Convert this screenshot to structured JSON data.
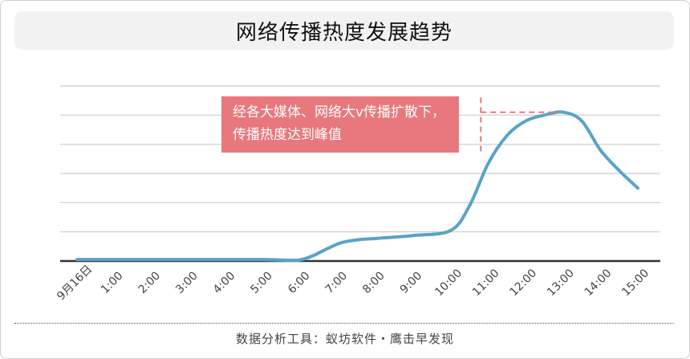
{
  "chart_data": {
    "type": "line",
    "title": "网络传播热度发展趋势",
    "categories": [
      "9月16日",
      "1:00",
      "2:00",
      "3:00",
      "4:00",
      "5:00",
      "6:00",
      "7:00",
      "8:00",
      "9:00",
      "10:00",
      "11:00",
      "12:00",
      "13:00",
      "14:00",
      "15:00"
    ],
    "x": [
      0,
      1,
      2,
      3,
      4,
      5,
      5.8,
      6,
      6.3,
      7,
      7.5,
      8,
      9,
      10,
      10.5,
      11,
      11.5,
      12,
      12.5,
      13,
      13.5,
      14,
      14.5,
      15
    ],
    "values": [
      0.1,
      0.1,
      0.1,
      0.1,
      0.1,
      0.1,
      0.05,
      0.1,
      0.35,
      1.2,
      1.45,
      1.55,
      1.75,
      2.1,
      3.8,
      6.7,
      8.6,
      9.6,
      10.0,
      10.2,
      9.6,
      7.6,
      6.2,
      5.0
    ],
    "ylim": [
      0,
      12
    ],
    "ygrid": [
      2,
      4,
      6,
      8,
      10,
      12
    ],
    "grid": true,
    "line_color": "#5aa3c7",
    "annotation": {
      "text": "经各大媒体、网络大v传播扩散下，传播热度达到峰值",
      "x_from": 10.8,
      "x_to": 12.9,
      "y": 10.2,
      "color": "#e8787d"
    }
  },
  "footer": "数据分析工具：蚁坊软件・鹰击早发现"
}
